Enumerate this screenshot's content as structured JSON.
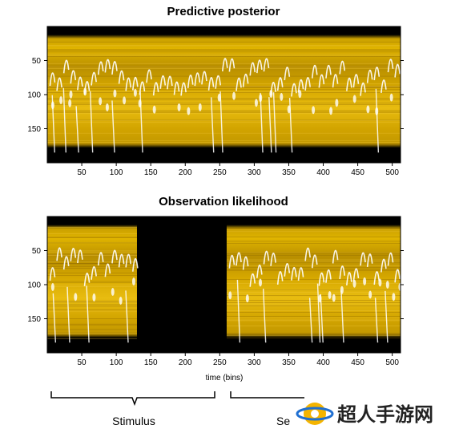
{
  "chart_data": [
    {
      "type": "heatmap",
      "title": "Predictive posterior",
      "xlabel": "",
      "ylabel": "",
      "xlim": [
        0,
        512
      ],
      "ylim": [
        200,
        0
      ],
      "x_ticks": [
        50,
        100,
        150,
        200,
        250,
        300,
        350,
        400,
        450,
        500
      ],
      "y_ticks": [
        50,
        100,
        150
      ],
      "colormap": [
        "#000000",
        "#7a5a00",
        "#d4a500",
        "#f0c020",
        "#ffffff"
      ],
      "observed_segments": [
        [
          0,
          512
        ]
      ]
    },
    {
      "type": "heatmap",
      "title": "Observation likelihood",
      "xlabel": "time (bins)",
      "ylabel": "",
      "xlim": [
        0,
        512
      ],
      "ylim": [
        200,
        0
      ],
      "x_ticks": [
        50,
        100,
        150,
        200,
        250,
        300,
        350,
        400,
        450,
        500
      ],
      "y_ticks": [
        50,
        100,
        150
      ],
      "colormap": [
        "#000000",
        "#7a5a00",
        "#d4a500",
        "#f0c020",
        "#ffffff"
      ],
      "observed_segments": [
        [
          0,
          130
        ],
        [
          260,
          512
        ]
      ]
    }
  ],
  "annotations": {
    "brace_left_label": "Stimulus",
    "brace_right_label": "Se"
  },
  "watermark": {
    "text": "超人手游网",
    "icon": "watermark-logo-icon"
  }
}
